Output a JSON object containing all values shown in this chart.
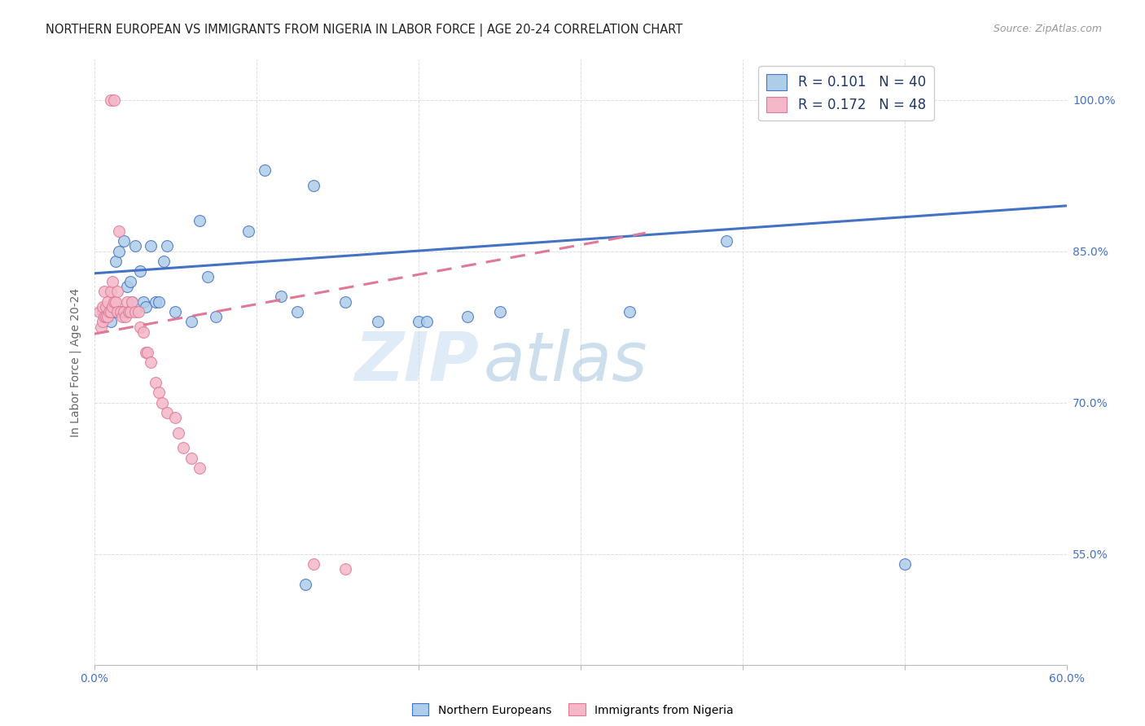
{
  "title": "NORTHERN EUROPEAN VS IMMIGRANTS FROM NIGERIA IN LABOR FORCE | AGE 20-24 CORRELATION CHART",
  "source": "Source: ZipAtlas.com",
  "ylabel": "In Labor Force | Age 20-24",
  "xlim": [
    0.0,
    0.6
  ],
  "ylim": [
    0.44,
    1.04
  ],
  "yticks_right": [
    0.55,
    0.7,
    0.85,
    1.0
  ],
  "ytickslabels_right": [
    "55.0%",
    "70.0%",
    "85.0%",
    "100.0%"
  ],
  "legend_r1": "R = 0.101",
  "legend_n1": "N = 40",
  "legend_r2": "R = 0.172",
  "legend_n2": "N = 48",
  "blue_face": "#AECDE8",
  "blue_edge": "#4472C4",
  "pink_face": "#F4B8C8",
  "pink_edge": "#E07898",
  "blue_line": "#4472C4",
  "pink_line": "#E07898",
  "grid_color": "#DDDDDD",
  "watermark_color": "#D0E8F5",
  "title_color": "#222222",
  "source_color": "#999999",
  "tick_color": "#4472C4",
  "ylabel_color": "#666666",
  "blue_x": [
    0.005,
    0.008,
    0.01,
    0.012,
    0.013,
    0.015,
    0.016,
    0.018,
    0.02,
    0.022,
    0.023,
    0.025,
    0.028,
    0.03,
    0.032,
    0.035,
    0.038,
    0.04,
    0.043,
    0.045,
    0.05,
    0.06,
    0.065,
    0.07,
    0.075,
    0.095,
    0.105,
    0.115,
    0.125,
    0.135,
    0.155,
    0.175,
    0.2,
    0.205,
    0.23,
    0.25,
    0.33,
    0.39,
    0.5,
    0.13
  ],
  "blue_y": [
    0.79,
    0.785,
    0.78,
    0.79,
    0.84,
    0.85,
    0.79,
    0.86,
    0.815,
    0.82,
    0.8,
    0.855,
    0.83,
    0.8,
    0.795,
    0.855,
    0.8,
    0.8,
    0.84,
    0.855,
    0.79,
    0.78,
    0.88,
    0.825,
    0.785,
    0.87,
    0.93,
    0.805,
    0.79,
    0.915,
    0.8,
    0.78,
    0.78,
    0.78,
    0.785,
    0.79,
    0.79,
    0.86,
    0.54,
    0.52
  ],
  "pink_x": [
    0.003,
    0.004,
    0.005,
    0.005,
    0.006,
    0.006,
    0.007,
    0.007,
    0.008,
    0.008,
    0.009,
    0.01,
    0.01,
    0.011,
    0.011,
    0.012,
    0.013,
    0.014,
    0.014,
    0.015,
    0.016,
    0.017,
    0.018,
    0.019,
    0.02,
    0.021,
    0.022,
    0.023,
    0.025,
    0.027,
    0.028,
    0.03,
    0.032,
    0.033,
    0.035,
    0.038,
    0.04,
    0.042,
    0.045,
    0.05,
    0.052,
    0.055,
    0.06,
    0.065,
    0.135,
    0.155,
    0.01,
    0.012
  ],
  "pink_y": [
    0.79,
    0.775,
    0.78,
    0.795,
    0.785,
    0.81,
    0.785,
    0.795,
    0.785,
    0.8,
    0.79,
    0.79,
    0.81,
    0.795,
    0.82,
    0.8,
    0.8,
    0.79,
    0.81,
    0.87,
    0.79,
    0.785,
    0.79,
    0.785,
    0.8,
    0.79,
    0.79,
    0.8,
    0.79,
    0.79,
    0.775,
    0.77,
    0.75,
    0.75,
    0.74,
    0.72,
    0.71,
    0.7,
    0.69,
    0.685,
    0.67,
    0.655,
    0.645,
    0.635,
    0.54,
    0.535,
    1.0,
    1.0
  ],
  "blue_trend_x0": 0.0,
  "blue_trend_x1": 0.6,
  "blue_trend_y0": 0.828,
  "blue_trend_y1": 0.895,
  "pink_trend_x0": 0.0,
  "pink_trend_x1": 0.34,
  "pink_trend_y0": 0.768,
  "pink_trend_y1": 0.868
}
